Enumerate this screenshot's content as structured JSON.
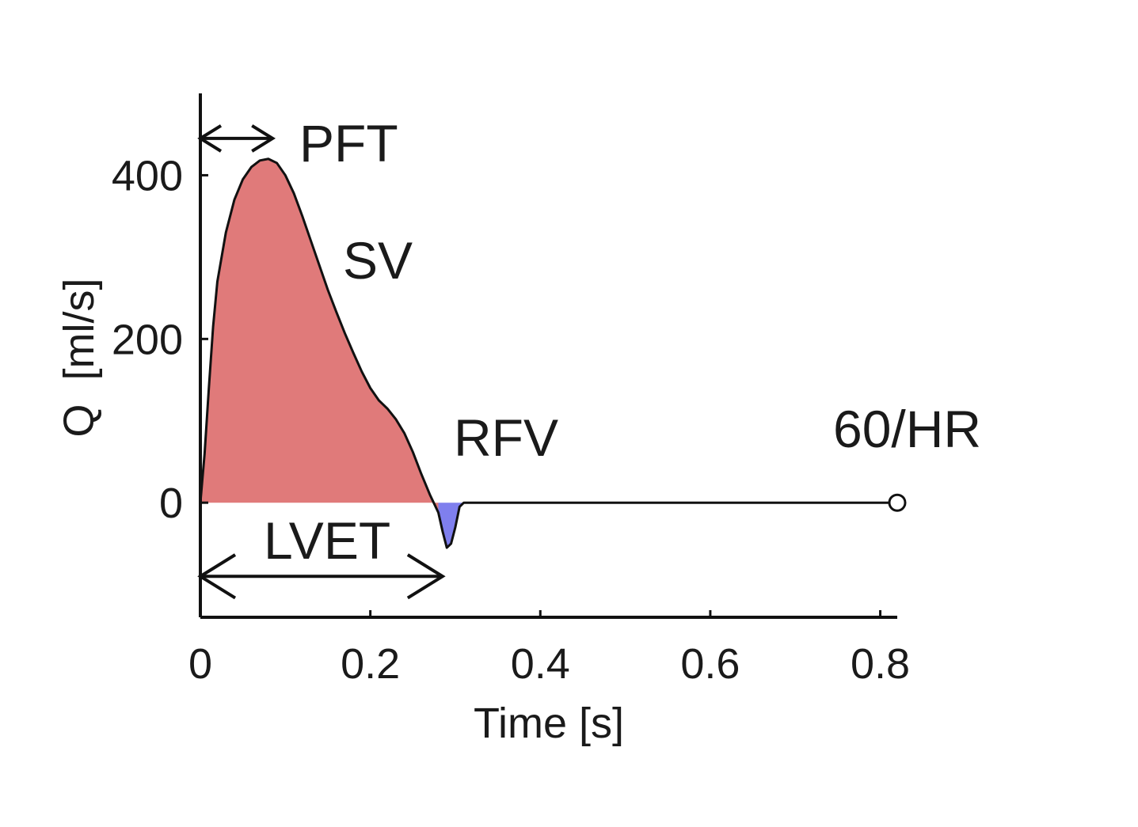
{
  "chart_data": {
    "type": "area",
    "xlabel": "Time [s]",
    "ylabel": "Q  [ml/s]",
    "xlim": [
      0,
      0.82
    ],
    "ylim": [
      -140,
      500
    ],
    "x_ticks": [
      0,
      0.2,
      0.4,
      0.6,
      0.8
    ],
    "x_tick_labels": [
      "0",
      "0.2",
      "0.4",
      "0.6",
      "0.8"
    ],
    "y_ticks": [
      0,
      200,
      400
    ],
    "y_tick_labels": [
      "0",
      "200",
      "400"
    ],
    "grid": false,
    "legend": "none",
    "series": [
      {
        "x": [
          0,
          0.005,
          0.01,
          0.015,
          0.02,
          0.03,
          0.04,
          0.05,
          0.06,
          0.07,
          0.08,
          0.09,
          0.1,
          0.11,
          0.12,
          0.13,
          0.14,
          0.15,
          0.16,
          0.17,
          0.18,
          0.19,
          0.2,
          0.21,
          0.22,
          0.23,
          0.24,
          0.25,
          0.26,
          0.27,
          0.28,
          0.285,
          0.29,
          0.295,
          0.3,
          0.305,
          0.31,
          0.82
        ],
        "y": [
          0,
          60,
          140,
          215,
          270,
          330,
          370,
          395,
          410,
          418,
          420,
          415,
          400,
          378,
          350,
          320,
          290,
          260,
          233,
          207,
          183,
          160,
          140,
          125,
          115,
          102,
          85,
          62,
          35,
          10,
          -12,
          -35,
          -55,
          -50,
          -30,
          -5,
          0,
          0
        ]
      }
    ],
    "regions": [
      {
        "label": "SV",
        "color": "#e07a7a",
        "x_range": [
          0,
          0.28
        ]
      },
      {
        "label": "RFV",
        "color": "#7f7fee",
        "x_range": [
          0.28,
          0.31
        ]
      }
    ],
    "end_marker": {
      "x": 0.82,
      "y": 0
    },
    "annotations": {
      "pft": {
        "text": "PFT",
        "x_start": 0,
        "x_end": 0.085,
        "y": 445
      },
      "sv": {
        "text": "SV"
      },
      "rfv": {
        "text": "RFV"
      },
      "hr": {
        "text": "60/HR"
      },
      "lvet": {
        "text": "LVET",
        "x_start": 0,
        "x_end": 0.285,
        "y": -90
      }
    }
  }
}
